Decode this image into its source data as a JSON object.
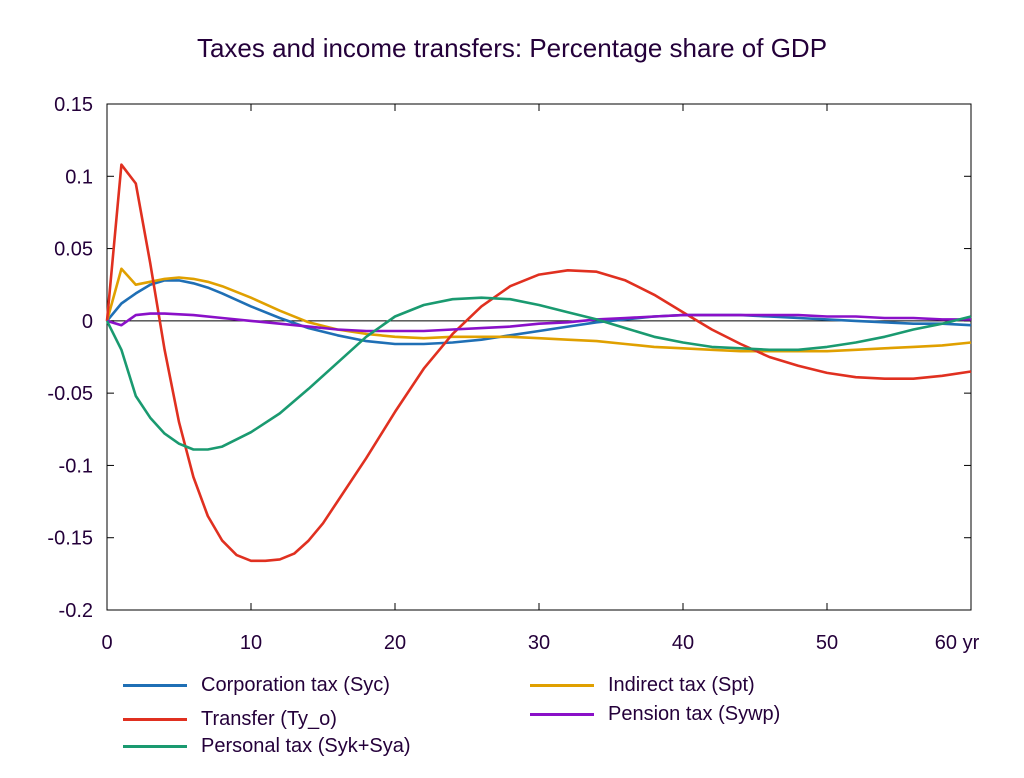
{
  "chart_data": {
    "type": "line",
    "title": "Taxes and income transfers: Percentage share of GDP",
    "xlim": [
      0,
      60
    ],
    "ylim": [
      -0.2,
      0.15
    ],
    "x_ticks": [
      0,
      10,
      20,
      30,
      40,
      50,
      60
    ],
    "x_tick_labels": [
      "0",
      "10",
      "20",
      "30",
      "40",
      "50",
      "60 yr"
    ],
    "y_ticks": [
      0.15,
      0.1,
      0.05,
      0,
      -0.05,
      -0.1,
      -0.15,
      -0.2
    ],
    "y_tick_labels": [
      "0.15",
      "0.1",
      "0.05",
      "0",
      "-0.05",
      "-0.1",
      "-0.15",
      "-0.2"
    ],
    "grid": false,
    "zero_line": true,
    "legend_position": "bottom",
    "series": [
      {
        "name": "Corporation tax (Syc)",
        "color": "#1f6fb5",
        "x": [
          0,
          1,
          2,
          3,
          4,
          5,
          6,
          7,
          8,
          10,
          12,
          14,
          16,
          18,
          20,
          22,
          24,
          26,
          28,
          30,
          32,
          34,
          36,
          38,
          40,
          42,
          44,
          46,
          48,
          50,
          52,
          54,
          56,
          58,
          60
        ],
        "y": [
          0,
          0.012,
          0.019,
          0.025,
          0.028,
          0.028,
          0.026,
          0.023,
          0.019,
          0.01,
          0.002,
          -0.005,
          -0.01,
          -0.014,
          -0.016,
          -0.016,
          -0.015,
          -0.013,
          -0.01,
          -0.007,
          -0.004,
          -0.001,
          0.001,
          0.003,
          0.004,
          0.004,
          0.004,
          0.003,
          0.002,
          0.001,
          0,
          -0.001,
          -0.002,
          -0.002,
          -0.003
        ]
      },
      {
        "name": "Indirect tax (Spt)",
        "color": "#e0a000",
        "x": [
          0,
          1,
          2,
          3,
          4,
          5,
          6,
          7,
          8,
          10,
          12,
          14,
          16,
          18,
          20,
          22,
          24,
          26,
          28,
          30,
          32,
          34,
          36,
          38,
          40,
          42,
          44,
          46,
          48,
          50,
          52,
          54,
          56,
          58,
          60
        ],
        "y": [
          0,
          0.036,
          0.025,
          0.027,
          0.029,
          0.03,
          0.029,
          0.027,
          0.024,
          0.016,
          0.007,
          -0.001,
          -0.006,
          -0.009,
          -0.011,
          -0.012,
          -0.011,
          -0.011,
          -0.011,
          -0.012,
          -0.013,
          -0.014,
          -0.016,
          -0.018,
          -0.019,
          -0.02,
          -0.021,
          -0.021,
          -0.021,
          -0.021,
          -0.02,
          -0.019,
          -0.018,
          -0.017,
          -0.015
        ]
      },
      {
        "name": "Transfer (Ty_o)",
        "color": "#e03020",
        "x": [
          0,
          1,
          2,
          3,
          4,
          5,
          6,
          7,
          8,
          9,
          10,
          11,
          12,
          13,
          14,
          15,
          16,
          18,
          20,
          22,
          24,
          26,
          28,
          30,
          32,
          34,
          36,
          38,
          40,
          42,
          44,
          46,
          48,
          50,
          52,
          54,
          56,
          58,
          60
        ],
        "y": [
          0,
          0.108,
          0.095,
          0.04,
          -0.02,
          -0.07,
          -0.108,
          -0.135,
          -0.152,
          -0.162,
          -0.166,
          -0.166,
          -0.165,
          -0.161,
          -0.152,
          -0.14,
          -0.125,
          -0.095,
          -0.063,
          -0.033,
          -0.009,
          0.01,
          0.024,
          0.032,
          0.035,
          0.034,
          0.028,
          0.018,
          0.006,
          -0.006,
          -0.016,
          -0.025,
          -0.031,
          -0.036,
          -0.039,
          -0.04,
          -0.04,
          -0.038,
          -0.035
        ]
      },
      {
        "name": "Pension tax (Sywp)",
        "color": "#8a10c8",
        "x": [
          0,
          1,
          2,
          3,
          4,
          6,
          8,
          10,
          12,
          14,
          16,
          18,
          20,
          22,
          24,
          26,
          28,
          30,
          32,
          34,
          36,
          38,
          40,
          42,
          44,
          46,
          48,
          50,
          52,
          54,
          56,
          58,
          60
        ],
        "y": [
          0,
          -0.003,
          0.004,
          0.005,
          0.005,
          0.004,
          0.002,
          0,
          -0.002,
          -0.004,
          -0.006,
          -0.007,
          -0.007,
          -0.007,
          -0.006,
          -0.005,
          -0.004,
          -0.002,
          -0.001,
          0.001,
          0.002,
          0.003,
          0.004,
          0.004,
          0.004,
          0.004,
          0.004,
          0.003,
          0.003,
          0.002,
          0.002,
          0.001,
          0.001
        ]
      },
      {
        "name": "Personal tax (Syk+Sya)",
        "color": "#1a9a70",
        "x": [
          0,
          1,
          2,
          3,
          4,
          5,
          6,
          7,
          8,
          10,
          12,
          14,
          16,
          18,
          20,
          22,
          24,
          26,
          28,
          30,
          32,
          34,
          36,
          38,
          40,
          42,
          44,
          46,
          48,
          50,
          52,
          54,
          56,
          58,
          60
        ],
        "y": [
          0,
          -0.02,
          -0.052,
          -0.067,
          -0.078,
          -0.085,
          -0.089,
          -0.089,
          -0.087,
          -0.077,
          -0.064,
          -0.047,
          -0.029,
          -0.011,
          0.003,
          0.011,
          0.015,
          0.016,
          0.015,
          0.011,
          0.006,
          0.001,
          -0.005,
          -0.011,
          -0.015,
          -0.018,
          -0.019,
          -0.02,
          -0.02,
          -0.018,
          -0.015,
          -0.011,
          -0.006,
          -0.002,
          0.003
        ]
      }
    ]
  }
}
